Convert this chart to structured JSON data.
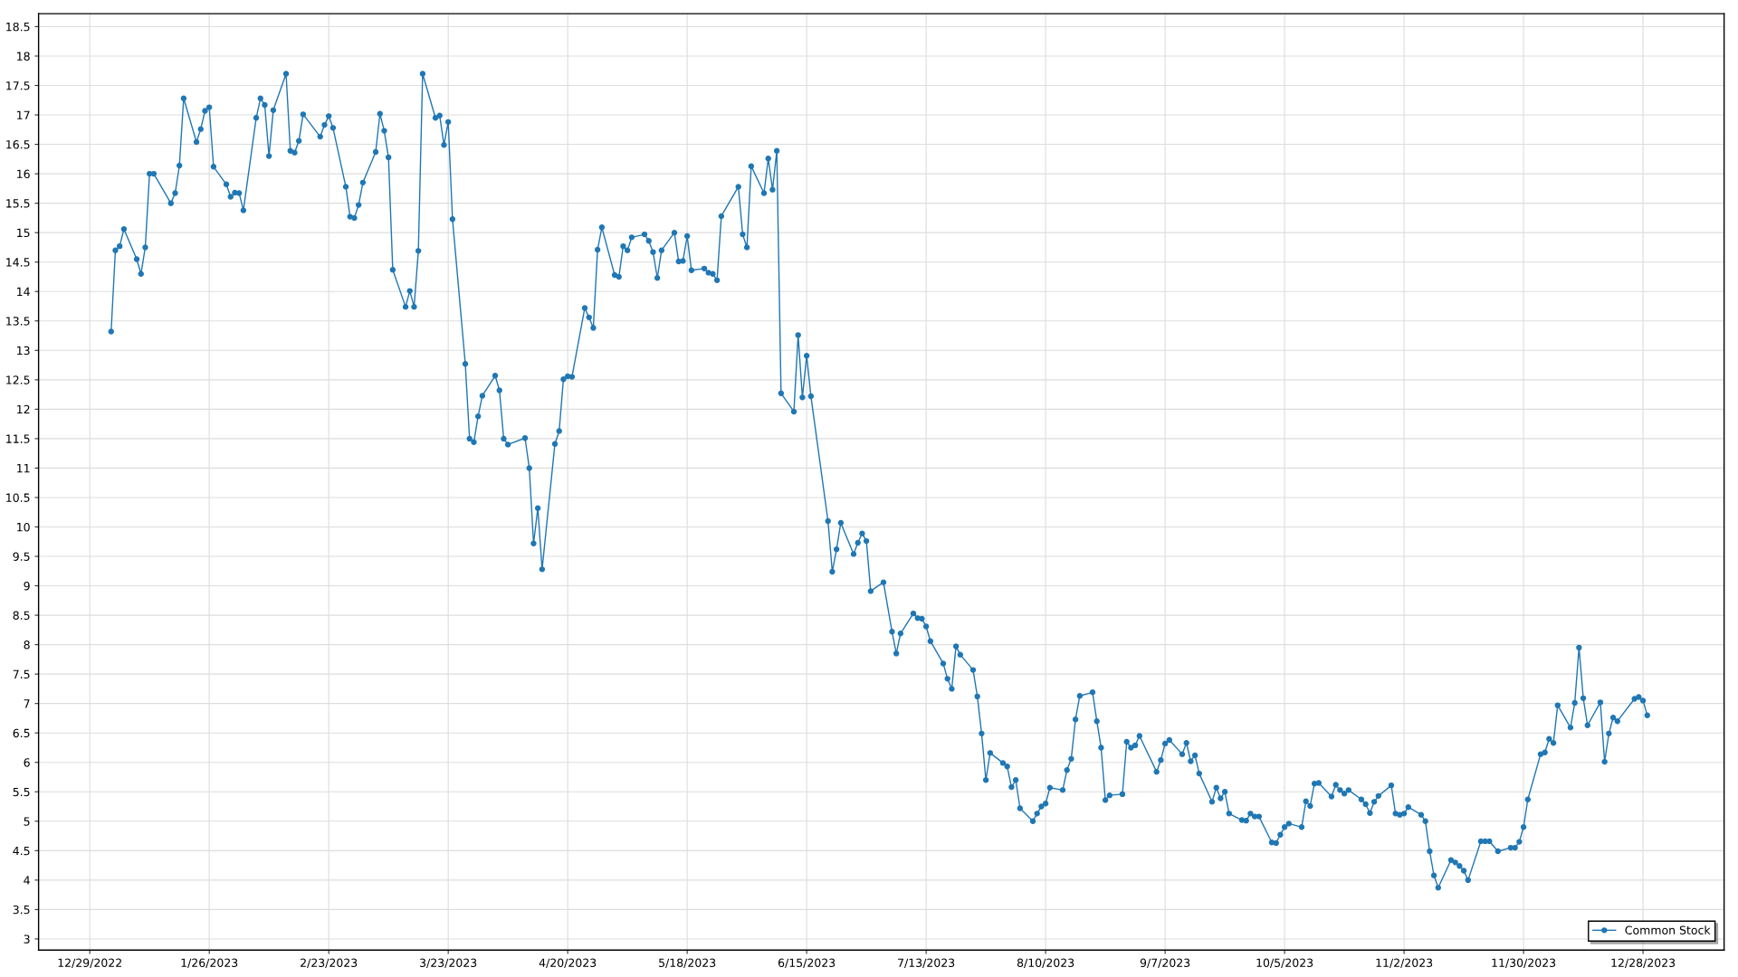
{
  "chart_data": {
    "type": "line",
    "x": [
      "2023-01-03",
      "2023-01-04",
      "2023-01-05",
      "2023-01-06",
      "2023-01-09",
      "2023-01-10",
      "2023-01-11",
      "2023-01-12",
      "2023-01-13",
      "2023-01-17",
      "2023-01-18",
      "2023-01-19",
      "2023-01-20",
      "2023-01-23",
      "2023-01-24",
      "2023-01-25",
      "2023-01-26",
      "2023-01-27",
      "2023-01-30",
      "2023-01-31",
      "2023-02-01",
      "2023-02-02",
      "2023-02-03",
      "2023-02-06",
      "2023-02-07",
      "2023-02-08",
      "2023-02-09",
      "2023-02-10",
      "2023-02-13",
      "2023-02-14",
      "2023-02-15",
      "2023-02-16",
      "2023-02-17",
      "2023-02-21",
      "2023-02-22",
      "2023-02-23",
      "2023-02-24",
      "2023-02-27",
      "2023-02-28",
      "2023-03-01",
      "2023-03-02",
      "2023-03-03",
      "2023-03-06",
      "2023-03-07",
      "2023-03-08",
      "2023-03-09",
      "2023-03-10",
      "2023-03-13",
      "2023-03-14",
      "2023-03-15",
      "2023-03-16",
      "2023-03-17",
      "2023-03-20",
      "2023-03-21",
      "2023-03-22",
      "2023-03-23",
      "2023-03-24",
      "2023-03-27",
      "2023-03-28",
      "2023-03-29",
      "2023-03-30",
      "2023-03-31",
      "2023-04-03",
      "2023-04-04",
      "2023-04-05",
      "2023-04-06",
      "2023-04-10",
      "2023-04-11",
      "2023-04-12",
      "2023-04-13",
      "2023-04-14",
      "2023-04-17",
      "2023-04-18",
      "2023-04-19",
      "2023-04-20",
      "2023-04-21",
      "2023-04-24",
      "2023-04-25",
      "2023-04-26",
      "2023-04-27",
      "2023-04-28",
      "2023-05-01",
      "2023-05-02",
      "2023-05-03",
      "2023-05-04",
      "2023-05-05",
      "2023-05-08",
      "2023-05-09",
      "2023-05-10",
      "2023-05-11",
      "2023-05-12",
      "2023-05-15",
      "2023-05-16",
      "2023-05-17",
      "2023-05-18",
      "2023-05-19",
      "2023-05-22",
      "2023-05-23",
      "2023-05-24",
      "2023-05-25",
      "2023-05-26",
      "2023-05-30",
      "2023-05-31",
      "2023-06-01",
      "2023-06-02",
      "2023-06-05",
      "2023-06-06",
      "2023-06-07",
      "2023-06-08",
      "2023-06-09",
      "2023-06-12",
      "2023-06-13",
      "2023-06-14",
      "2023-06-15",
      "2023-06-16",
      "2023-06-20",
      "2023-06-21",
      "2023-06-22",
      "2023-06-23",
      "2023-06-26",
      "2023-06-27",
      "2023-06-28",
      "2023-06-29",
      "2023-06-30",
      "2023-07-03",
      "2023-07-05",
      "2023-07-06",
      "2023-07-07",
      "2023-07-10",
      "2023-07-11",
      "2023-07-12",
      "2023-07-13",
      "2023-07-14",
      "2023-07-17",
      "2023-07-18",
      "2023-07-19",
      "2023-07-20",
      "2023-07-21",
      "2023-07-24",
      "2023-07-25",
      "2023-07-26",
      "2023-07-27",
      "2023-07-28",
      "2023-07-31",
      "2023-08-01",
      "2023-08-02",
      "2023-08-03",
      "2023-08-04",
      "2023-08-07",
      "2023-08-08",
      "2023-08-09",
      "2023-08-10",
      "2023-08-11",
      "2023-08-14",
      "2023-08-15",
      "2023-08-16",
      "2023-08-17",
      "2023-08-18",
      "2023-08-21",
      "2023-08-22",
      "2023-08-23",
      "2023-08-24",
      "2023-08-25",
      "2023-08-28",
      "2023-08-29",
      "2023-08-30",
      "2023-08-31",
      "2023-09-01",
      "2023-09-05",
      "2023-09-06",
      "2023-09-07",
      "2023-09-08",
      "2023-09-11",
      "2023-09-12",
      "2023-09-13",
      "2023-09-14",
      "2023-09-15",
      "2023-09-18",
      "2023-09-19",
      "2023-09-20",
      "2023-09-21",
      "2023-09-22",
      "2023-09-25",
      "2023-09-26",
      "2023-09-27",
      "2023-09-28",
      "2023-09-29",
      "2023-10-02",
      "2023-10-03",
      "2023-10-04",
      "2023-10-05",
      "2023-10-06",
      "2023-10-09",
      "2023-10-10",
      "2023-10-11",
      "2023-10-12",
      "2023-10-13",
      "2023-10-16",
      "2023-10-17",
      "2023-10-18",
      "2023-10-19",
      "2023-10-20",
      "2023-10-23",
      "2023-10-24",
      "2023-10-25",
      "2023-10-26",
      "2023-10-27",
      "2023-10-30",
      "2023-10-31",
      "2023-11-01",
      "2023-11-02",
      "2023-11-03",
      "2023-11-06",
      "2023-11-07",
      "2023-11-08",
      "2023-11-09",
      "2023-11-10",
      "2023-11-13",
      "2023-11-14",
      "2023-11-15",
      "2023-11-16",
      "2023-11-17",
      "2023-11-20",
      "2023-11-21",
      "2023-11-22",
      "2023-11-24",
      "2023-11-27",
      "2023-11-28",
      "2023-11-29",
      "2023-11-30",
      "2023-12-01",
      "2023-12-04",
      "2023-12-05",
      "2023-12-06",
      "2023-12-07",
      "2023-12-08",
      "2023-12-11",
      "2023-12-12",
      "2023-12-13",
      "2023-12-14",
      "2023-12-15",
      "2023-12-18",
      "2023-12-19",
      "2023-12-20",
      "2023-12-21",
      "2023-12-22",
      "2023-12-26",
      "2023-12-27",
      "2023-12-28",
      "2023-12-29"
    ],
    "series": [
      {
        "name": "Common Stock",
        "color": "#1f77b4",
        "values": [
          13.32,
          14.7,
          14.77,
          15.06,
          14.55,
          14.3,
          14.75,
          16.0,
          16.0,
          15.5,
          15.67,
          16.14,
          17.28,
          16.54,
          16.76,
          17.07,
          17.13,
          16.12,
          15.82,
          15.61,
          15.68,
          15.67,
          15.38,
          16.95,
          17.28,
          17.17,
          16.3,
          17.08,
          17.7,
          16.39,
          16.36,
          16.56,
          17.01,
          16.63,
          16.83,
          16.98,
          16.78,
          15.78,
          15.27,
          15.25,
          15.47,
          15.85,
          16.37,
          17.02,
          16.73,
          16.28,
          14.37,
          13.74,
          14.01,
          13.74,
          14.69,
          17.7,
          16.95,
          16.99,
          16.49,
          16.88,
          15.23,
          12.77,
          11.5,
          11.44,
          11.88,
          12.23,
          12.57,
          12.32,
          11.5,
          11.4,
          11.51,
          11.0,
          9.72,
          10.32,
          9.28,
          11.41,
          11.63,
          12.51,
          12.56,
          12.55,
          13.72,
          13.56,
          13.38,
          14.71,
          15.09,
          14.28,
          14.25,
          14.77,
          14.7,
          14.92,
          14.97,
          14.86,
          14.67,
          14.23,
          14.7,
          15.0,
          14.51,
          14.52,
          14.94,
          14.36,
          14.39,
          14.32,
          14.3,
          14.19,
          15.28,
          15.78,
          14.97,
          14.75,
          16.13,
          15.67,
          16.26,
          15.73,
          16.39,
          12.27,
          11.96,
          13.26,
          12.2,
          12.91,
          12.22,
          10.1,
          9.24,
          9.62,
          10.07,
          9.54,
          9.73,
          9.89,
          9.76,
          8.91,
          9.06,
          8.22,
          7.85,
          8.19,
          8.53,
          8.45,
          8.44,
          8.31,
          8.06,
          7.68,
          7.42,
          7.25,
          7.97,
          7.83,
          7.57,
          7.12,
          6.49,
          5.7,
          6.16,
          5.99,
          5.93,
          5.58,
          5.7,
          5.22,
          5.0,
          5.13,
          5.25,
          5.3,
          5.57,
          5.53,
          5.87,
          6.06,
          6.73,
          7.13,
          7.19,
          6.7,
          6.25,
          5.36,
          5.44,
          5.46,
          6.35,
          6.25,
          6.29,
          6.45,
          5.84,
          6.04,
          6.32,
          6.38,
          6.14,
          6.33,
          6.02,
          6.12,
          5.81,
          5.33,
          5.57,
          5.39,
          5.5,
          5.13,
          5.02,
          5.01,
          5.13,
          5.08,
          5.08,
          4.64,
          4.63,
          4.77,
          4.9,
          4.96,
          4.9,
          5.34,
          5.26,
          5.64,
          5.65,
          5.42,
          5.62,
          5.53,
          5.47,
          5.53,
          5.37,
          5.29,
          5.14,
          5.33,
          5.43,
          5.61,
          5.13,
          5.11,
          5.13,
          5.24,
          5.11,
          5.0,
          4.49,
          4.08,
          3.87,
          4.34,
          4.3,
          4.24,
          4.16,
          4.0,
          4.66,
          4.66,
          4.66,
          4.49,
          4.55,
          4.55,
          4.65,
          4.9,
          5.37,
          6.14,
          6.17,
          6.4,
          6.33,
          6.97,
          6.59,
          7.01,
          7.95,
          7.09,
          6.63,
          7.02,
          6.01,
          6.49,
          6.76,
          6.7,
          7.08,
          7.11,
          7.05,
          6.8
        ]
      }
    ],
    "xlim": [
      "2022-12-17",
      "2024-01-16"
    ],
    "xticks": [
      {
        "value": "2022-12-29",
        "label": "12/29/2022"
      },
      {
        "value": "2023-01-26",
        "label": "1/26/2023"
      },
      {
        "value": "2023-02-23",
        "label": "2/23/2023"
      },
      {
        "value": "2023-03-23",
        "label": "3/23/2023"
      },
      {
        "value": "2023-04-20",
        "label": "4/20/2023"
      },
      {
        "value": "2023-05-18",
        "label": "5/18/2023"
      },
      {
        "value": "2023-06-15",
        "label": "6/15/2023"
      },
      {
        "value": "2023-07-13",
        "label": "7/13/2023"
      },
      {
        "value": "2023-08-10",
        "label": "8/10/2023"
      },
      {
        "value": "2023-09-07",
        "label": "9/7/2023"
      },
      {
        "value": "2023-10-05",
        "label": "10/5/2023"
      },
      {
        "value": "2023-11-02",
        "label": "11/2/2023"
      },
      {
        "value": "2023-11-30",
        "label": "11/30/2023"
      },
      {
        "value": "2023-12-28",
        "label": "12/28/2023"
      }
    ],
    "ylim": [
      2.81,
      18.72
    ],
    "yticks": [
      3,
      3.5,
      4,
      4.5,
      5,
      5.5,
      6,
      6.5,
      7,
      7.5,
      8,
      8.5,
      9,
      9.5,
      10,
      10.5,
      11,
      11.5,
      12,
      12.5,
      13,
      13.5,
      14,
      14.5,
      15,
      15.5,
      16,
      16.5,
      17,
      17.5,
      18,
      18.5
    ],
    "grid": true,
    "legend": "bottom right",
    "marker": "circle",
    "line_style": "solid"
  }
}
